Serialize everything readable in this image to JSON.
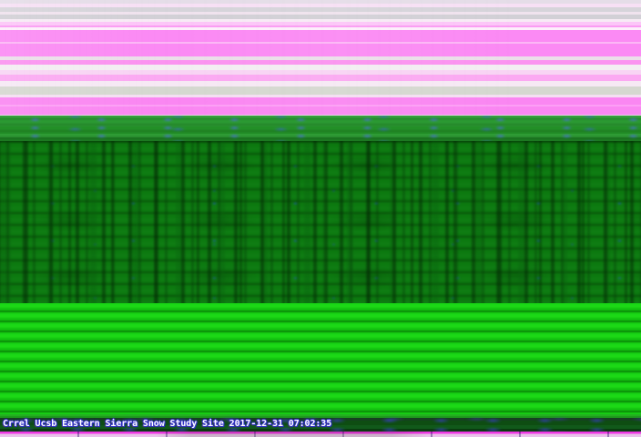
{
  "caption": {
    "text": "Crrel Ucsb Eastern Sierra Snow Study Site 2017-12-31  07:02:35",
    "site_name": "Crrel Ucsb Eastern Sierra Snow Study Site",
    "date": "2017-12-31",
    "time": "07:02:35"
  },
  "colors": {
    "magenta-stripe": "#fa87f2",
    "pale-stripe": "#f6eaf4",
    "gray-stripe": "#d5d8d0",
    "green-upper": "#2c9a33",
    "green-dark": "#0d7a10",
    "green-bright": "#16cd12",
    "blue-speck": "#4a6fdf",
    "caption-text": "#ffffff",
    "caption-outline": "#2e2ec8",
    "magenta-line": "#ee3ae4",
    "bottom-pale": "#e9c2ea"
  }
}
